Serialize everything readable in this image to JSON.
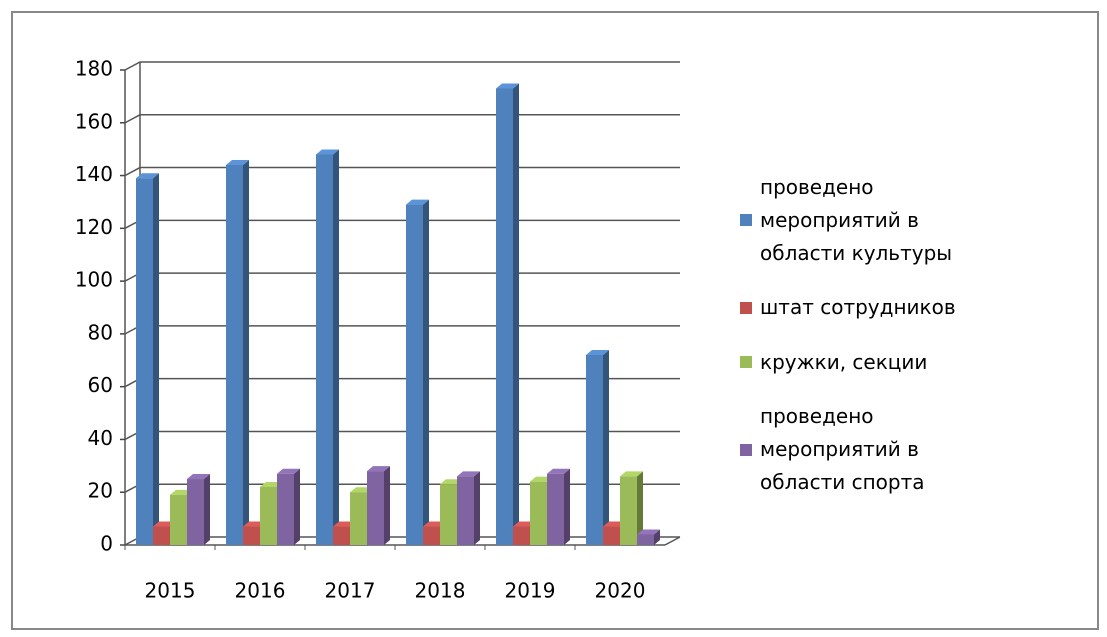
{
  "chart_data": {
    "type": "bar",
    "categories": [
      "2015",
      "2016",
      "2017",
      "2018",
      "2019",
      "2020"
    ],
    "series": [
      {
        "name": "проведено мероприятий в области культуры",
        "color": "#4f81bd",
        "values": [
          139,
          144,
          148,
          129,
          173,
          72
        ]
      },
      {
        "name": "штат сотрудников",
        "color": "#c0504d",
        "values": [
          7,
          7,
          7,
          7,
          7,
          7
        ]
      },
      {
        "name": "кружки, секции",
        "color": "#9bbb59",
        "values": [
          19,
          22,
          20,
          23,
          24,
          26
        ]
      },
      {
        "name": "проведено мероприятий в области спорта",
        "color": "#8064a2",
        "values": [
          25,
          27,
          28,
          26,
          27,
          4
        ]
      }
    ],
    "ylim": [
      0,
      180
    ],
    "yticks": [
      0,
      20,
      40,
      60,
      80,
      100,
      120,
      140,
      160,
      180
    ],
    "grid": true,
    "legend": "right"
  }
}
